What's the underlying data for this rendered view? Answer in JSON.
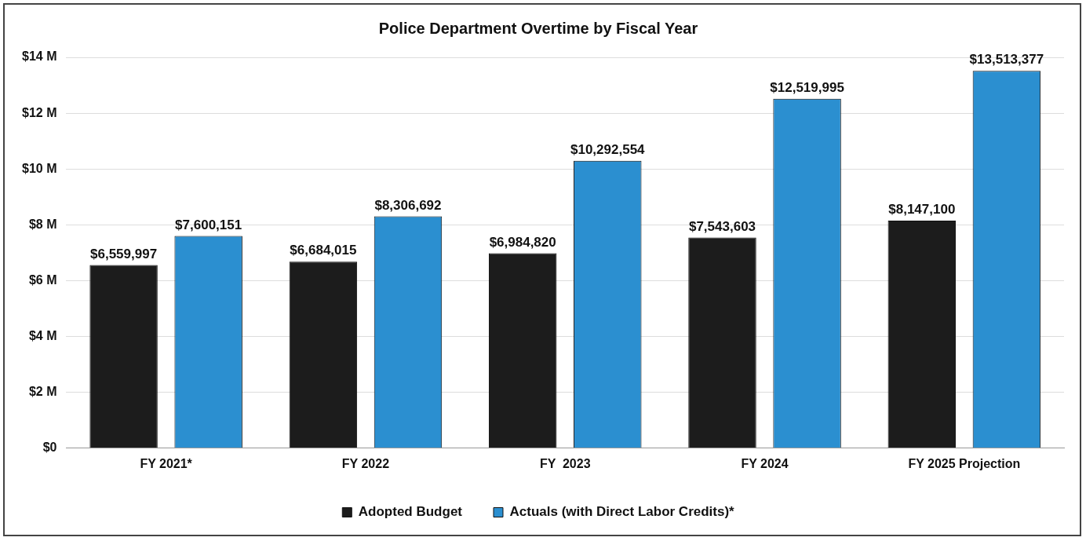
{
  "chart_data": {
    "type": "bar",
    "title": "Police Department Overtime by Fiscal Year",
    "categories": [
      "FY 2021*",
      "FY 2022",
      "FY  2023",
      "FY 2024",
      "FY 2025 Projection"
    ],
    "series": [
      {
        "name": "Adopted Budget",
        "color": "#1c1c1c",
        "values": [
          6559997,
          6684015,
          6984820,
          7543603,
          8147100
        ],
        "value_labels": [
          "$6,559,997",
          "$6,684,015",
          "$6,984,820",
          "$7,543,603",
          "$8,147,100"
        ]
      },
      {
        "name": "Actuals (with Direct Labor Credits)*",
        "color": "#2b8fd0",
        "values": [
          7600151,
          8306692,
          10292554,
          12519995,
          13513377
        ],
        "value_labels": [
          "$7,600,151",
          "$8,306,692",
          "$10,292,554",
          "$12,519,995",
          "$13,513,377"
        ]
      }
    ],
    "ylim": [
      0,
      14000000
    ],
    "yticks": [
      {
        "value": 0,
        "label": "$0"
      },
      {
        "value": 2000000,
        "label": "$2 M"
      },
      {
        "value": 4000000,
        "label": "$4 M"
      },
      {
        "value": 6000000,
        "label": "$6 M"
      },
      {
        "value": 8000000,
        "label": "$8 M"
      },
      {
        "value": 10000000,
        "label": "$10 M"
      },
      {
        "value": 12000000,
        "label": "$12 M"
      },
      {
        "value": 14000000,
        "label": "$14 M"
      }
    ],
    "grid": "y",
    "legend": "bottom"
  }
}
